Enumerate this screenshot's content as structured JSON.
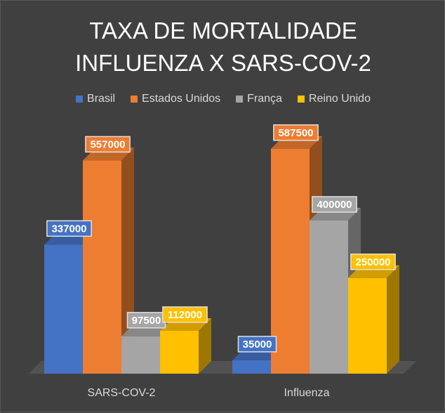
{
  "chart_data": {
    "type": "bar",
    "title_lines": [
      "TAXA DE MORTALIDADE",
      "INFLUENZA X SARS-COV-2"
    ],
    "categories": [
      "SARS-COV-2",
      "Influenza"
    ],
    "series": [
      {
        "name": "Brasil",
        "values": [
          337000,
          35000
        ],
        "color": "#4472C4"
      },
      {
        "name": "Estados Unidos",
        "values": [
          557000,
          587500
        ],
        "color": "#ED7D31"
      },
      {
        "name": "França",
        "values": [
          97500,
          400000
        ],
        "color": "#A5A5A5"
      },
      {
        "name": "Reino Unido",
        "values": [
          112000,
          250000
        ],
        "color": "#FFC000"
      }
    ],
    "data_labels": [
      [
        "337000",
        "35000"
      ],
      [
        "557000",
        "587500"
      ],
      [
        "97500",
        "400000"
      ],
      [
        "112000",
        "250000"
      ]
    ],
    "ylim": [
      0,
      600000
    ],
    "grid": false,
    "legend_position": "top",
    "style": "3d-column"
  }
}
